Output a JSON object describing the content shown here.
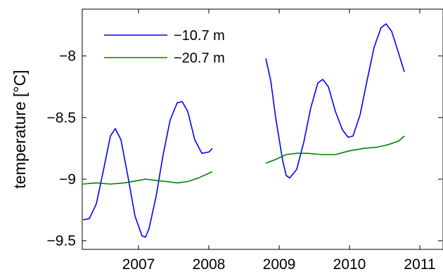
{
  "chart_data": {
    "type": "line",
    "title": "",
    "xlabel": "",
    "ylabel": "temperature [°C]",
    "xlim": [
      2006.2,
      2011.33
    ],
    "ylim": [
      -9.57,
      -7.62
    ],
    "x_ticks": [
      {
        "value": 2007,
        "label": "2007"
      },
      {
        "value": 2008,
        "label": "2008"
      },
      {
        "value": 2009,
        "label": "2009"
      },
      {
        "value": 2010,
        "label": "2010"
      },
      {
        "value": 2011,
        "label": "2011"
      }
    ],
    "y_ticks": [
      {
        "value": -8,
        "label": "−8"
      },
      {
        "value": -8.5,
        "label": "−8.5"
      },
      {
        "value": -9,
        "label": "−9"
      },
      {
        "value": -9.5,
        "label": "−9.5"
      }
    ],
    "grid": false,
    "legend_position": "top-left",
    "series": [
      {
        "name": "−10.7 m",
        "color": "#0000ff",
        "segments": [
          [
            [
              2006.21,
              -9.33
            ],
            [
              2006.3,
              -9.32
            ],
            [
              2006.4,
              -9.2
            ],
            [
              2006.5,
              -8.93
            ],
            [
              2006.6,
              -8.65
            ],
            [
              2006.67,
              -8.59
            ],
            [
              2006.75,
              -8.68
            ],
            [
              2006.85,
              -8.98
            ],
            [
              2006.95,
              -9.3
            ],
            [
              2007.05,
              -9.46
            ],
            [
              2007.1,
              -9.47
            ],
            [
              2007.15,
              -9.4
            ],
            [
              2007.25,
              -9.14
            ],
            [
              2007.35,
              -8.8
            ],
            [
              2007.45,
              -8.52
            ],
            [
              2007.55,
              -8.38
            ],
            [
              2007.62,
              -8.37
            ],
            [
              2007.7,
              -8.45
            ],
            [
              2007.8,
              -8.68
            ],
            [
              2007.9,
              -8.79
            ],
            [
              2008.0,
              -8.78
            ],
            [
              2008.05,
              -8.75
            ]
          ],
          [
            [
              2008.81,
              -8.02
            ],
            [
              2008.88,
              -8.2
            ],
            [
              2008.95,
              -8.5
            ],
            [
              2009.05,
              -8.85
            ],
            [
              2009.1,
              -8.97
            ],
            [
              2009.15,
              -8.99
            ],
            [
              2009.25,
              -8.92
            ],
            [
              2009.35,
              -8.7
            ],
            [
              2009.45,
              -8.42
            ],
            [
              2009.55,
              -8.22
            ],
            [
              2009.62,
              -8.19
            ],
            [
              2009.7,
              -8.25
            ],
            [
              2009.8,
              -8.45
            ],
            [
              2009.9,
              -8.6
            ],
            [
              2009.98,
              -8.66
            ],
            [
              2010.05,
              -8.65
            ],
            [
              2010.15,
              -8.48
            ],
            [
              2010.25,
              -8.2
            ],
            [
              2010.35,
              -7.93
            ],
            [
              2010.45,
              -7.77
            ],
            [
              2010.52,
              -7.74
            ],
            [
              2010.6,
              -7.8
            ],
            [
              2010.7,
              -7.98
            ],
            [
              2010.78,
              -8.13
            ]
          ]
        ]
      },
      {
        "name": "−20.7 m",
        "color": "#008000",
        "segments": [
          [
            [
              2006.21,
              -9.04
            ],
            [
              2006.4,
              -9.03
            ],
            [
              2006.6,
              -9.04
            ],
            [
              2006.8,
              -9.03
            ],
            [
              2007.0,
              -9.01
            ],
            [
              2007.1,
              -9.0
            ],
            [
              2007.25,
              -9.01
            ],
            [
              2007.4,
              -9.02
            ],
            [
              2007.55,
              -9.03
            ],
            [
              2007.7,
              -9.02
            ],
            [
              2007.85,
              -8.99
            ],
            [
              2008.05,
              -8.94
            ]
          ],
          [
            [
              2008.81,
              -8.87
            ],
            [
              2008.95,
              -8.84
            ],
            [
              2009.1,
              -8.8
            ],
            [
              2009.25,
              -8.79
            ],
            [
              2009.4,
              -8.79
            ],
            [
              2009.6,
              -8.8
            ],
            [
              2009.8,
              -8.8
            ],
            [
              2010.0,
              -8.77
            ],
            [
              2010.2,
              -8.75
            ],
            [
              2010.4,
              -8.74
            ],
            [
              2010.55,
              -8.72
            ],
            [
              2010.7,
              -8.69
            ],
            [
              2010.78,
              -8.65
            ]
          ]
        ]
      }
    ]
  }
}
